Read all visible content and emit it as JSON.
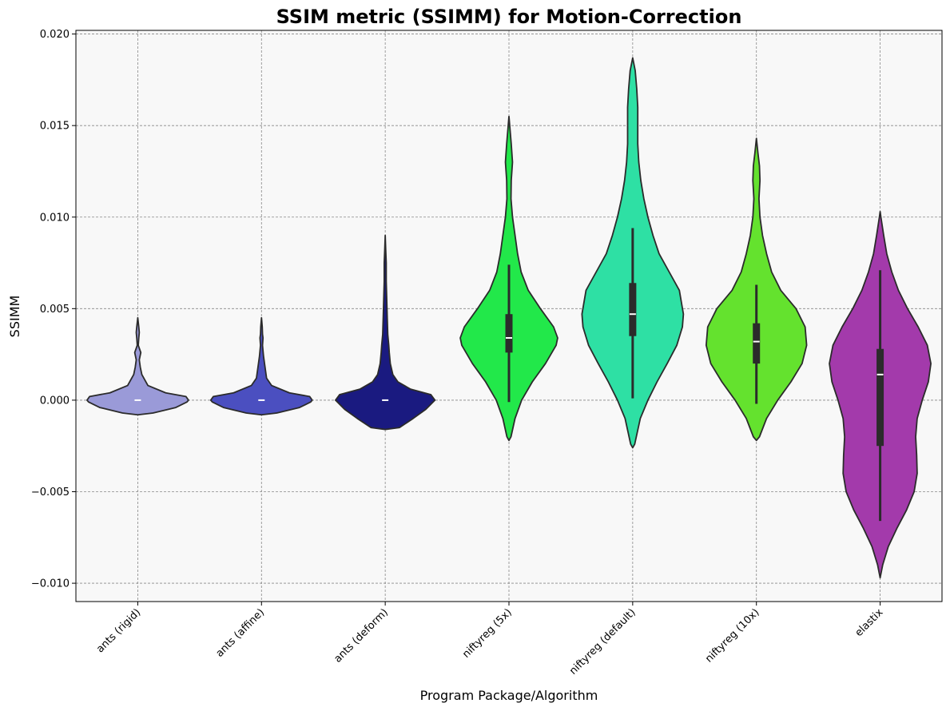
{
  "chart_data": {
    "type": "violin",
    "title": "SSIM metric (SSIMM) for Motion-Correction",
    "title_color": "#8b0000",
    "xlabel": "Program Package/Algorithm",
    "ylabel": "SSIMM",
    "ylim": [
      -0.011,
      0.0202
    ],
    "yticks": [
      -0.01,
      -0.005,
      0.0,
      0.005,
      0.01,
      0.015,
      0.02
    ],
    "ytick_labels": [
      "−0.010",
      "−0.005",
      "0.000",
      "0.005",
      "0.010",
      "0.015",
      "0.020"
    ],
    "grid": true,
    "background": "#f8f8f8",
    "categories": [
      "ants (rigid)",
      "ants (affine)",
      "ants (deform)",
      "niftyreg (5x)",
      "niftyreg (default)",
      "niftyreg (10x)",
      "elastix"
    ],
    "violins": [
      {
        "color": "#9a9ad8",
        "min": -0.0008,
        "max": 0.0045,
        "q1": 0.0,
        "median": 0.0,
        "q3": 0.0,
        "whisker_low": 0.0,
        "whisker_high": 0.0,
        "profile": [
          [
            -0.0008,
            0
          ],
          [
            -0.0007,
            0.3
          ],
          [
            -0.0004,
            0.75
          ],
          [
            -0.0001,
            0.97
          ],
          [
            0.0,
            1.0
          ],
          [
            0.0002,
            0.95
          ],
          [
            0.0004,
            0.55
          ],
          [
            0.0008,
            0.2
          ],
          [
            0.0014,
            0.08
          ],
          [
            0.0018,
            0.05
          ],
          [
            0.0022,
            0.03
          ],
          [
            0.0026,
            0.06
          ],
          [
            0.003,
            0.01
          ],
          [
            0.0034,
            0.02
          ],
          [
            0.0037,
            0.03
          ],
          [
            0.004,
            0.02
          ],
          [
            0.0045,
            0
          ]
        ]
      },
      {
        "color": "#4b4fc0",
        "min": -0.0008,
        "max": 0.0045,
        "q1": 0.0,
        "median": 0.0,
        "q3": 0.0,
        "whisker_low": 0.0,
        "whisker_high": 0.0,
        "profile": [
          [
            -0.0008,
            0
          ],
          [
            -0.0007,
            0.3
          ],
          [
            -0.0004,
            0.75
          ],
          [
            -0.0001,
            0.97
          ],
          [
            0.0,
            1.0
          ],
          [
            0.0002,
            0.95
          ],
          [
            0.0004,
            0.55
          ],
          [
            0.0008,
            0.2
          ],
          [
            0.0012,
            0.1
          ],
          [
            0.0016,
            0.08
          ],
          [
            0.002,
            0.06
          ],
          [
            0.0024,
            0.04
          ],
          [
            0.003,
            0.02
          ],
          [
            0.0034,
            0.03
          ],
          [
            0.0036,
            0.02
          ],
          [
            0.004,
            0.015
          ],
          [
            0.0045,
            0
          ]
        ]
      },
      {
        "color": "#1a1a80",
        "min": -0.0016,
        "max": 0.009,
        "q1": 0.0,
        "median": 0.0,
        "q3": 0.0,
        "whisker_low": 0.0,
        "whisker_high": 0.0,
        "profile": [
          [
            -0.0016,
            0
          ],
          [
            -0.0015,
            0.28
          ],
          [
            -0.001,
            0.55
          ],
          [
            -0.0005,
            0.8
          ],
          [
            0.0,
            0.98
          ],
          [
            0.0003,
            0.9
          ],
          [
            0.0006,
            0.5
          ],
          [
            0.001,
            0.25
          ],
          [
            0.0014,
            0.15
          ],
          [
            0.002,
            0.1
          ],
          [
            0.0026,
            0.08
          ],
          [
            0.003,
            0.07
          ],
          [
            0.0036,
            0.05
          ],
          [
            0.0045,
            0.04
          ],
          [
            0.0055,
            0.03
          ],
          [
            0.0065,
            0.02
          ],
          [
            0.0075,
            0.02
          ],
          [
            0.0082,
            0.01
          ],
          [
            0.009,
            0
          ]
        ]
      },
      {
        "color": "#22e84a",
        "min": -0.0022,
        "max": 0.0155,
        "q1": 0.0026,
        "median": 0.0034,
        "q3": 0.0047,
        "whisker_low": -0.0001,
        "whisker_high": 0.0074,
        "profile": [
          [
            -0.0022,
            0
          ],
          [
            -0.002,
            0.04
          ],
          [
            -0.001,
            0.12
          ],
          [
            0.0,
            0.25
          ],
          [
            0.001,
            0.46
          ],
          [
            0.002,
            0.72
          ],
          [
            0.003,
            0.93
          ],
          [
            0.0034,
            0.96
          ],
          [
            0.004,
            0.88
          ],
          [
            0.005,
            0.62
          ],
          [
            0.006,
            0.38
          ],
          [
            0.007,
            0.24
          ],
          [
            0.008,
            0.17
          ],
          [
            0.009,
            0.12
          ],
          [
            0.01,
            0.07
          ],
          [
            0.011,
            0.04
          ],
          [
            0.012,
            0.045
          ],
          [
            0.013,
            0.07
          ],
          [
            0.014,
            0.045
          ],
          [
            0.015,
            0.015
          ],
          [
            0.0155,
            0
          ]
        ]
      },
      {
        "color": "#2ee0a4",
        "min": -0.0026,
        "max": 0.0187,
        "q1": 0.0035,
        "median": 0.0047,
        "q3": 0.0064,
        "whisker_low": 0.0001,
        "whisker_high": 0.0094,
        "profile": [
          [
            -0.0026,
            0
          ],
          [
            -0.0024,
            0.04
          ],
          [
            -0.001,
            0.15
          ],
          [
            0.0,
            0.3
          ],
          [
            0.001,
            0.48
          ],
          [
            0.002,
            0.68
          ],
          [
            0.003,
            0.87
          ],
          [
            0.004,
            0.98
          ],
          [
            0.0047,
            1.0
          ],
          [
            0.006,
            0.92
          ],
          [
            0.007,
            0.72
          ],
          [
            0.008,
            0.52
          ],
          [
            0.009,
            0.4
          ],
          [
            0.01,
            0.3
          ],
          [
            0.011,
            0.22
          ],
          [
            0.012,
            0.16
          ],
          [
            0.013,
            0.12
          ],
          [
            0.014,
            0.1
          ],
          [
            0.016,
            0.1
          ],
          [
            0.017,
            0.08
          ],
          [
            0.018,
            0.05
          ],
          [
            0.0187,
            0
          ]
        ]
      },
      {
        "color": "#64e22e",
        "min": -0.0022,
        "max": 0.0143,
        "q1": 0.002,
        "median": 0.0032,
        "q3": 0.0042,
        "whisker_low": -0.0002,
        "whisker_high": 0.0063,
        "profile": [
          [
            -0.0022,
            0
          ],
          [
            -0.002,
            0.06
          ],
          [
            -0.001,
            0.2
          ],
          [
            0.0,
            0.42
          ],
          [
            0.001,
            0.68
          ],
          [
            0.002,
            0.9
          ],
          [
            0.003,
            0.99
          ],
          [
            0.004,
            0.96
          ],
          [
            0.005,
            0.78
          ],
          [
            0.006,
            0.48
          ],
          [
            0.007,
            0.3
          ],
          [
            0.008,
            0.2
          ],
          [
            0.009,
            0.12
          ],
          [
            0.01,
            0.07
          ],
          [
            0.011,
            0.05
          ],
          [
            0.012,
            0.07
          ],
          [
            0.0128,
            0.06
          ],
          [
            0.0135,
            0.03
          ],
          [
            0.0143,
            0
          ]
        ]
      },
      {
        "color": "#a33aab",
        "min": -0.0097,
        "max": 0.0103,
        "q1": -0.0025,
        "median": 0.0014,
        "q3": 0.0028,
        "whisker_low": -0.0066,
        "whisker_high": 0.0071,
        "profile": [
          [
            -0.0097,
            0
          ],
          [
            -0.009,
            0.05
          ],
          [
            -0.008,
            0.16
          ],
          [
            -0.007,
            0.33
          ],
          [
            -0.006,
            0.52
          ],
          [
            -0.005,
            0.67
          ],
          [
            -0.004,
            0.73
          ],
          [
            -0.003,
            0.72
          ],
          [
            -0.002,
            0.7
          ],
          [
            -0.001,
            0.73
          ],
          [
            0.0,
            0.83
          ],
          [
            0.001,
            0.95
          ],
          [
            0.002,
            1.0
          ],
          [
            0.003,
            0.93
          ],
          [
            0.004,
            0.75
          ],
          [
            0.005,
            0.54
          ],
          [
            0.006,
            0.36
          ],
          [
            0.007,
            0.23
          ],
          [
            0.008,
            0.13
          ],
          [
            0.009,
            0.07
          ],
          [
            0.01,
            0.015
          ],
          [
            0.0103,
            0
          ]
        ]
      }
    ]
  }
}
